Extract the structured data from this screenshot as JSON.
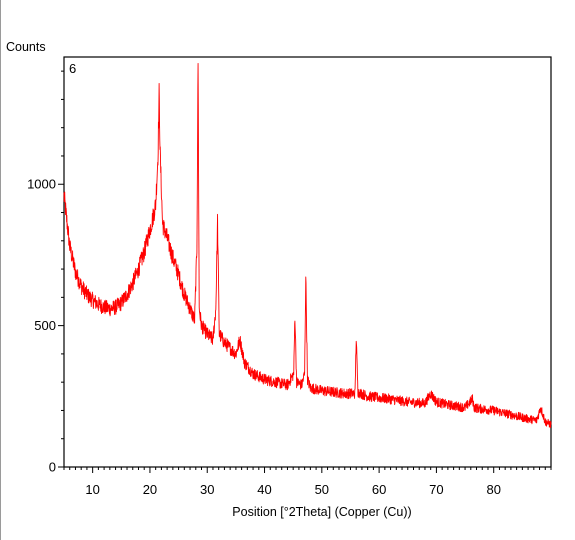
{
  "chart_data": {
    "type": "line",
    "title": "",
    "panel_label": "6",
    "xlabel": "Position [°2Theta] (Copper (Cu))",
    "ylabel": "Counts",
    "xlim": [
      5,
      90
    ],
    "ylim": [
      0,
      1450
    ],
    "x_ticks": [
      10,
      20,
      30,
      40,
      50,
      60,
      70,
      80
    ],
    "y_ticks": [
      0,
      500,
      1000
    ],
    "grid": false,
    "legend": "none",
    "series": [
      {
        "color": "#ff0000",
        "x": [
          5,
          6,
          7,
          8,
          9,
          10,
          11,
          12,
          13,
          14,
          15,
          16,
          17,
          18,
          19,
          20,
          20.5,
          21,
          21.4,
          21.6,
          21.8,
          22.2,
          23,
          24,
          25,
          26,
          27,
          27.8,
          28.2,
          28.4,
          28.6,
          29,
          30,
          31,
          31.5,
          31.8,
          32.1,
          33,
          34,
          35,
          35.7,
          36.5,
          38,
          40,
          42,
          44,
          45.1,
          45.3,
          45.6,
          46.5,
          47,
          47.2,
          47.5,
          48,
          50,
          52,
          54,
          55.8,
          56,
          56.3,
          58,
          60,
          62,
          65,
          68,
          69,
          70,
          72,
          75,
          76.3,
          76.6,
          78,
          80,
          82,
          84,
          86,
          87.5,
          88.2,
          89,
          90
        ],
        "y": [
          960,
          780,
          690,
          640,
          610,
          590,
          575,
          565,
          560,
          565,
          580,
          610,
          650,
          700,
          760,
          840,
          880,
          930,
          1100,
          1320,
          1100,
          860,
          810,
          740,
          680,
          610,
          560,
          520,
          780,
          1440,
          560,
          500,
          470,
          450,
          560,
          870,
          470,
          440,
          420,
          400,
          450,
          370,
          330,
          310,
          300,
          290,
          330,
          540,
          300,
          290,
          330,
          680,
          310,
          280,
          270,
          265,
          260,
          260,
          460,
          265,
          250,
          245,
          240,
          230,
          225,
          260,
          230,
          220,
          210,
          240,
          210,
          205,
          200,
          190,
          180,
          170,
          165,
          210,
          160,
          150
        ]
      }
    ]
  }
}
